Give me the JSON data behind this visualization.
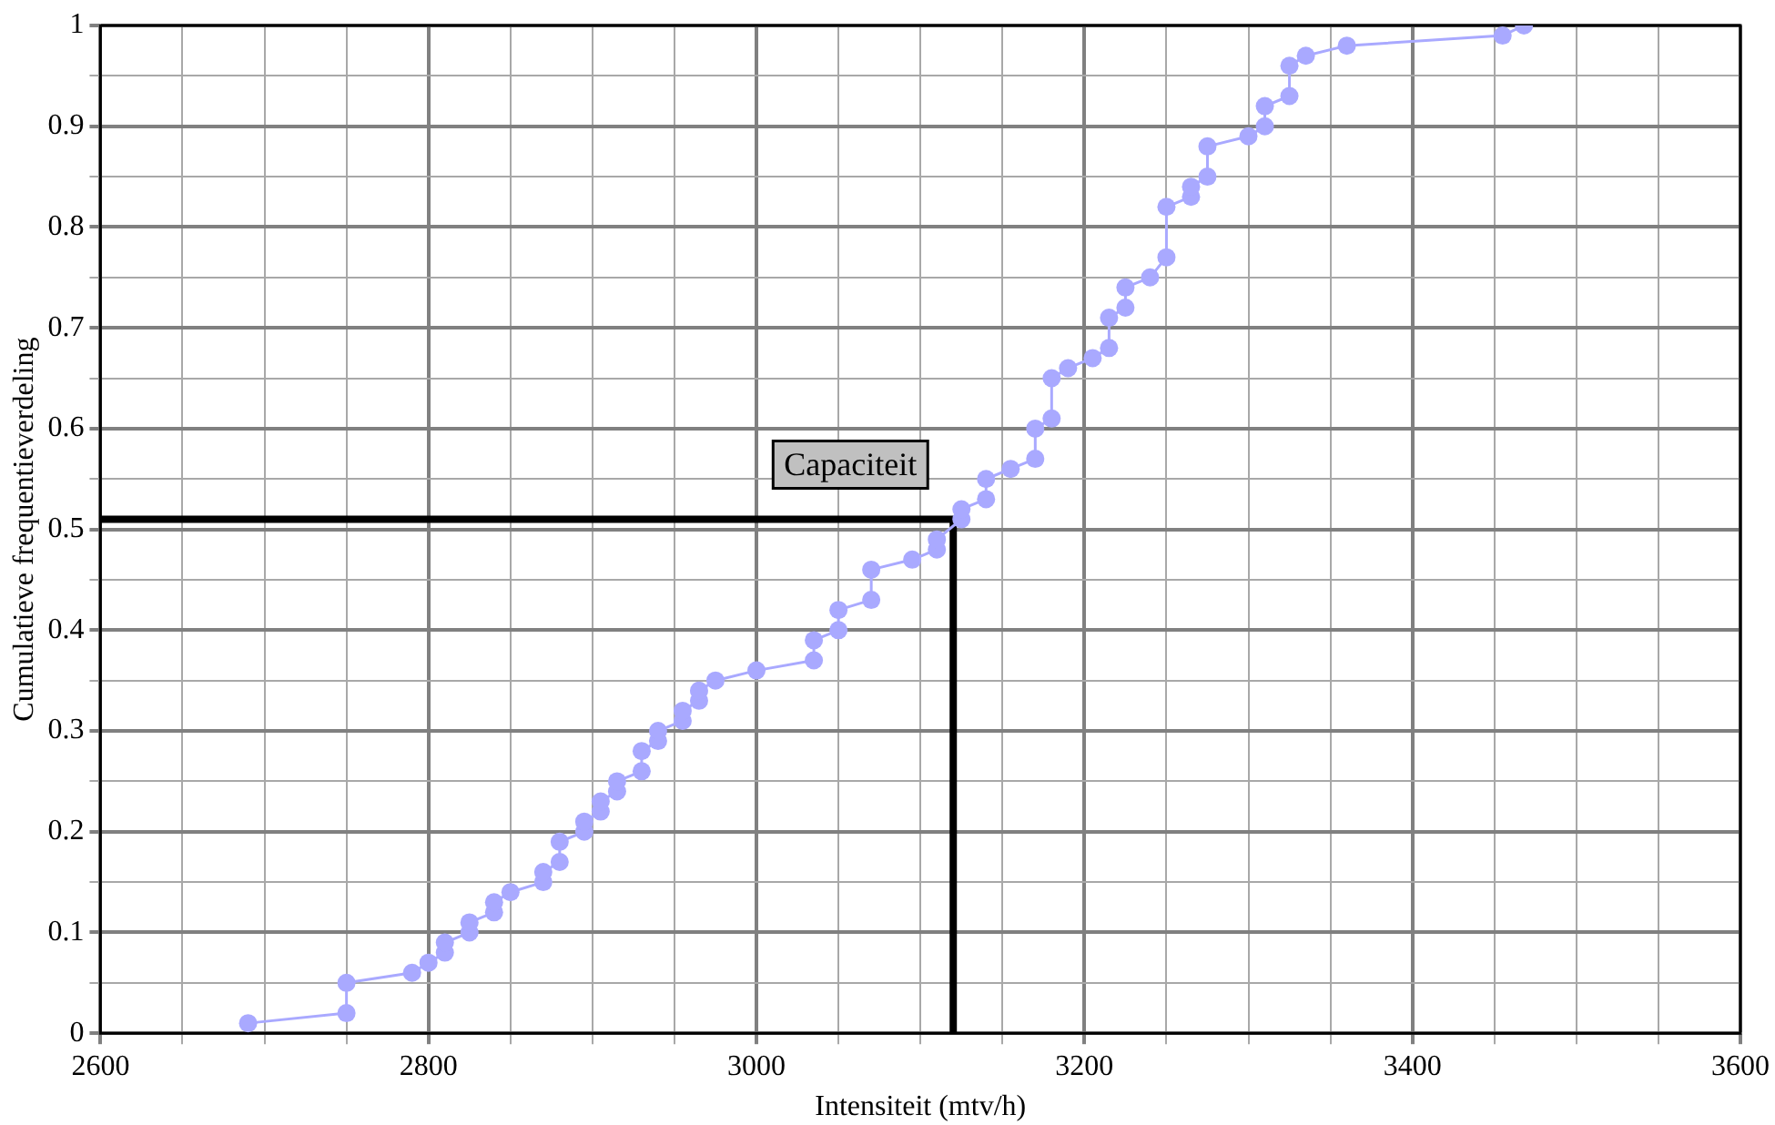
{
  "chart_data": {
    "type": "line",
    "xlabel": "Intensiteit (mtv/h)",
    "ylabel": "Cumulatieve frequentieverdeling",
    "xlim": [
      2600,
      3600
    ],
    "xticks": [
      2600,
      {
        "value": 2650,
        "label": null
      },
      {
        "value": 2700,
        "label": null
      },
      {
        "value": 2750,
        "label": null
      },
      2800,
      {
        "value": 2850,
        "label": null
      },
      {
        "value": 2900,
        "label": null
      },
      {
        "value": 2950,
        "label": null
      },
      3000,
      {
        "value": 3050,
        "label": null
      },
      {
        "value": 3100,
        "label": null
      },
      {
        "value": 3150,
        "label": null
      },
      3200,
      {
        "value": 3250,
        "label": null
      },
      {
        "value": 3300,
        "label": null
      },
      {
        "value": 3350,
        "label": null
      },
      3400,
      {
        "value": 3450,
        "label": null
      },
      {
        "value": 3500,
        "label": null
      },
      {
        "value": 3550,
        "label": null
      },
      3600
    ],
    "ylim": [
      0,
      1
    ],
    "yticks": [
      0,
      {
        "value": 0.05,
        "label": null
      },
      0.1,
      {
        "value": 0.15,
        "label": null
      },
      0.2,
      {
        "value": 0.25,
        "label": null
      },
      0.3,
      {
        "value": 0.35,
        "label": null
      },
      0.4,
      {
        "value": 0.45,
        "label": null
      },
      0.5,
      {
        "value": 0.55,
        "label": null
      },
      0.6,
      {
        "value": 0.65,
        "label": null
      },
      0.7,
      {
        "value": 0.75,
        "label": null
      },
      0.8,
      {
        "value": 0.85,
        "label": null
      },
      0.9,
      {
        "value": 0.95,
        "label": null
      },
      1
    ],
    "grid": true,
    "legend": false,
    "series": [
      {
        "color": "#a9a9ff",
        "marker": "circle",
        "x": [
          2690,
          2750,
          2750,
          2790,
          2800,
          2810,
          2810,
          2825,
          2825,
          2840,
          2840,
          2850,
          2870,
          2870,
          2880,
          2880,
          2895,
          2895,
          2905,
          2905,
          2915,
          2915,
          2930,
          2930,
          2940,
          2940,
          2955,
          2955,
          2965,
          2965,
          2975,
          3000,
          3035,
          3035,
          3050,
          3050,
          3070,
          3070,
          3095,
          3110,
          3110,
          3125,
          3125,
          3140,
          3140,
          3155,
          3170,
          3170,
          3180,
          3180,
          3190,
          3205,
          3215,
          3215,
          3225,
          3225,
          3240,
          3250,
          3250,
          3265,
          3265,
          3275,
          3275,
          3300,
          3310,
          3310,
          3325,
          3325,
          3335,
          3360,
          3455,
          3468
        ],
        "values": [
          0.01,
          0.02,
          0.05,
          0.06,
          0.07,
          0.08,
          0.09,
          0.1,
          0.11,
          0.12,
          0.13,
          0.14,
          0.15,
          0.16,
          0.17,
          0.19,
          0.2,
          0.21,
          0.22,
          0.23,
          0.24,
          0.25,
          0.26,
          0.28,
          0.29,
          0.3,
          0.31,
          0.32,
          0.33,
          0.34,
          0.35,
          0.36,
          0.37,
          0.39,
          0.4,
          0.42,
          0.43,
          0.46,
          0.47,
          0.48,
          0.49,
          0.51,
          0.52,
          0.53,
          0.55,
          0.56,
          0.57,
          0.6,
          0.61,
          0.65,
          0.66,
          0.67,
          0.68,
          0.71,
          0.72,
          0.74,
          0.75,
          0.77,
          0.82,
          0.83,
          0.84,
          0.85,
          0.88,
          0.89,
          0.9,
          0.92,
          0.93,
          0.96,
          0.97,
          0.98,
          0.99,
          1
        ]
      },
      {
        "color": "#000000",
        "marker": "none",
        "x": [
          2600,
          3120,
          3120
        ],
        "values": [
          0.51,
          0.51,
          0
        ]
      }
    ],
    "annotations": [
      "Capaciteit"
    ]
  }
}
